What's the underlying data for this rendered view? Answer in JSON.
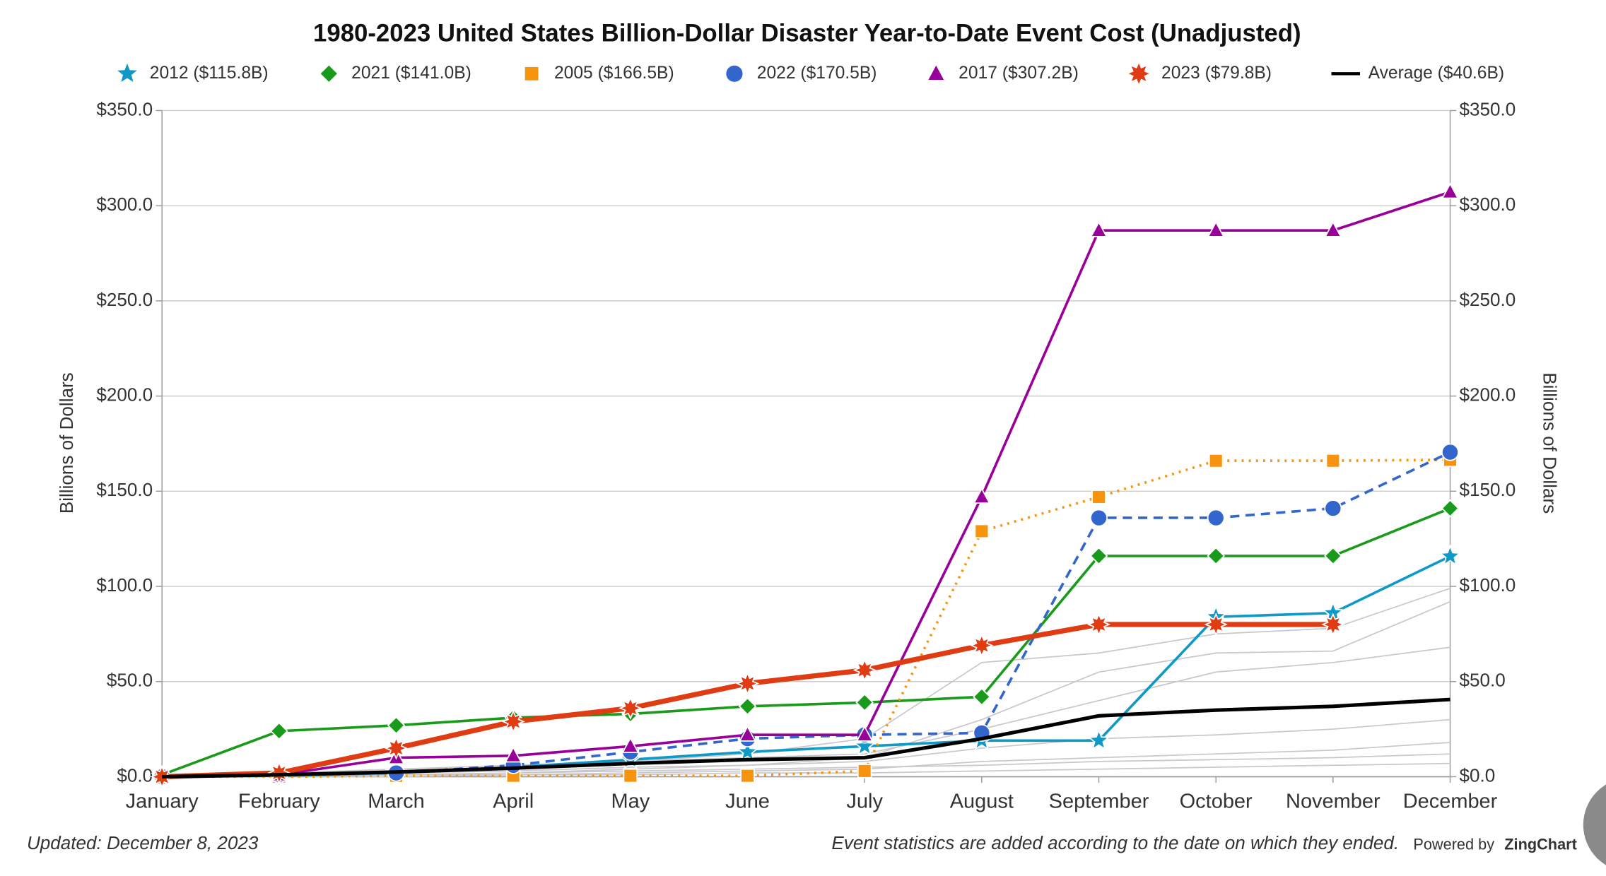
{
  "chart_data": {
    "type": "line",
    "title": "1980-2023 United States Billion-Dollar Disaster Year-to-Date Event Cost (Unadjusted)",
    "ylabel": "Billions of Dollars",
    "y2label": "Billions of Dollars",
    "categories": [
      "January",
      "February",
      "March",
      "April",
      "May",
      "June",
      "July",
      "August",
      "September",
      "October",
      "November",
      "December"
    ],
    "ylim": [
      0,
      350
    ],
    "yticks": [
      {
        "value": 0,
        "label": "$0.0"
      },
      {
        "value": 50,
        "label": "$50.0"
      },
      {
        "value": 100,
        "label": "$100.0"
      },
      {
        "value": 150,
        "label": "$150.0"
      },
      {
        "value": 200,
        "label": "$200.0"
      },
      {
        "value": 250,
        "label": "$250.0"
      },
      {
        "value": 300,
        "label": "$300.0"
      },
      {
        "value": 350,
        "label": "$350.0"
      }
    ],
    "y2lim": [
      0,
      350
    ],
    "y2ticks": [
      {
        "value": 0,
        "label": "$0.0"
      },
      {
        "value": 50,
        "label": "$50.0"
      },
      {
        "value": 100,
        "label": "$100.0"
      },
      {
        "value": 150,
        "label": "$150.0"
      },
      {
        "value": 200,
        "label": "$200.0"
      },
      {
        "value": 250,
        "label": "$250.0"
      },
      {
        "value": 300,
        "label": "$300.0"
      },
      {
        "value": 350,
        "label": "$350.0"
      }
    ],
    "grid": true,
    "legend": "top",
    "background_color": "#c8c8cc",
    "background_series": [
      [
        0,
        1,
        3,
        5,
        8,
        12,
        20,
        60,
        65,
        75,
        78,
        99
      ],
      [
        0,
        0,
        1,
        2,
        4,
        6,
        10,
        30,
        55,
        65,
        66,
        92
      ],
      [
        0,
        2,
        4,
        6,
        8,
        10,
        12,
        25,
        40,
        55,
        60,
        68
      ],
      [
        0,
        1,
        2,
        3,
        5,
        6,
        8,
        15,
        20,
        22,
        25,
        30
      ],
      [
        0,
        0,
        1,
        1,
        2,
        3,
        4,
        8,
        10,
        12,
        14,
        18
      ],
      [
        0,
        1,
        1,
        2,
        3,
        4,
        5,
        6,
        8,
        9,
        10,
        12
      ],
      [
        0,
        0,
        0,
        1,
        1,
        2,
        2,
        3,
        4,
        5,
        6,
        7
      ]
    ],
    "series": [
      {
        "name": "2012 ($115.8B)",
        "color": "#0e99c6",
        "marker": "star5",
        "dash": "solid",
        "width": 2.5,
        "values": [
          0,
          0.5,
          2,
          5,
          9,
          13,
          16,
          19,
          19,
          84,
          86,
          115.8
        ]
      },
      {
        "name": "2021 ($141.0B)",
        "color": "#1a9a1a",
        "marker": "diamond",
        "dash": "solid",
        "width": 2.5,
        "values": [
          1,
          24,
          27,
          31,
          33,
          37,
          39,
          42,
          116,
          116,
          116,
          141.0
        ]
      },
      {
        "name": "2005 ($166.5B)",
        "color": "#f7940f",
        "marker": "square",
        "dash": "dotted",
        "width": 2.5,
        "values": [
          0,
          0,
          0.5,
          0.5,
          0.5,
          0.5,
          3,
          129,
          147,
          166,
          166,
          166.5
        ]
      },
      {
        "name": "2022 ($170.5B)",
        "color": "#3366cc",
        "marker": "circle",
        "dash": "dashed",
        "width": 2.5,
        "values": [
          0,
          1,
          2,
          6,
          13,
          20,
          22,
          23,
          136,
          136,
          141,
          170.5
        ]
      },
      {
        "name": "2017 ($307.2B)",
        "color": "#990099",
        "marker": "triangle",
        "dash": "solid",
        "width": 2.5,
        "values": [
          0,
          1,
          10,
          11,
          16,
          22,
          22,
          147,
          287,
          287,
          287,
          307.2
        ]
      },
      {
        "name": "2023 ($79.8B)",
        "color": "#e03c14",
        "marker": "star8",
        "dash": "solid",
        "width": 5,
        "values": [
          0,
          2,
          15,
          29,
          36,
          49,
          56,
          69,
          80,
          80,
          80,
          null
        ]
      },
      {
        "name": "Average ($40.6B)",
        "color": "#000000",
        "marker": "none",
        "dash": "solid",
        "width": 3.5,
        "values": [
          0,
          1,
          2.5,
          4.5,
          7,
          9,
          10,
          20,
          32,
          35,
          37,
          40.6
        ]
      }
    ],
    "updated": "Updated: December 8, 2023",
    "note": "Event statistics are added according to the date on which they ended.",
    "powered_by": "Powered by",
    "brand": "ZingChart"
  }
}
